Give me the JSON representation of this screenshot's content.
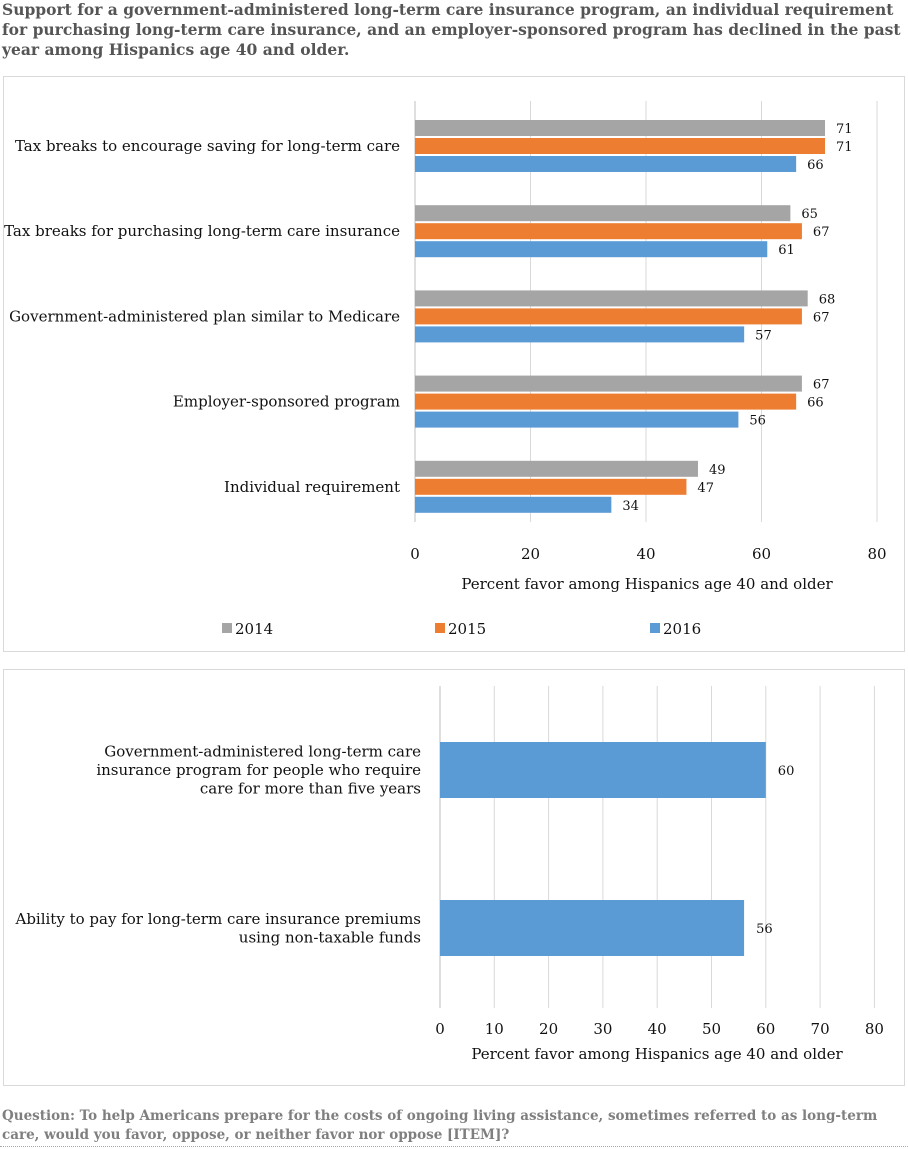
{
  "title": "Support for a government-administered long-term care insurance program, an individual requirement for purchasing long-term care insurance, and an employer-sponsored program has declined in the past year among Hispanics age 40 and older.",
  "footnote": "Question: To help Americans prepare for the costs of ongoing living assistance, sometimes referred to as long-term care, would you favor, oppose, or neither favor nor oppose [ITEM]?",
  "chart_data": [
    {
      "type": "bar",
      "orientation": "horizontal",
      "categories": [
        "Tax breaks to encourage saving for long-term care",
        "Tax breaks for purchasing long-term care insurance",
        "Government-administered plan similar to Medicare",
        "Employer-sponsored program",
        "Individual requirement"
      ],
      "series": [
        {
          "name": "2014",
          "color": "#a5a5a5",
          "values": [
            71,
            65,
            68,
            67,
            49
          ]
        },
        {
          "name": "2015",
          "color": "#ed7d31",
          "values": [
            71,
            67,
            67,
            66,
            47
          ]
        },
        {
          "name": "2016",
          "color": "#5b9bd5",
          "values": [
            66,
            61,
            57,
            56,
            34
          ]
        }
      ],
      "xlabel": "Percent favor among Hispanics age 40 and older",
      "xlim": [
        0,
        80
      ],
      "xticks": [
        0,
        20,
        40,
        60,
        80
      ],
      "grid": true,
      "legend": "bottom"
    },
    {
      "type": "bar",
      "orientation": "horizontal",
      "categories": [
        "Government-administered long-term care insurance program for people who require care for more than five years",
        "Ability to pay for long-term care insurance premiums using non-taxable funds"
      ],
      "category_lines": [
        [
          "Government-administered long-term care",
          "insurance program for people who require",
          "care for more than five years"
        ],
        [
          "Ability to pay for long-term care insurance premiums",
          "using non-taxable funds"
        ]
      ],
      "series": [
        {
          "color": "#5b9bd5",
          "values": [
            60,
            56
          ]
        }
      ],
      "xlabel": "Percent favor among Hispanics age 40 and older",
      "xlim": [
        0,
        80
      ],
      "xticks": [
        0,
        10,
        20,
        30,
        40,
        50,
        60,
        70,
        80
      ],
      "grid": true
    }
  ]
}
